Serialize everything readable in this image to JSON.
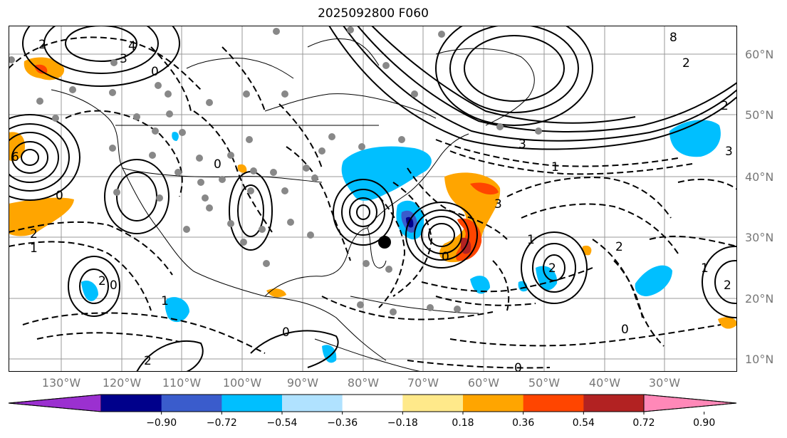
{
  "title": "2025092800 F060",
  "lat_labels": [
    "60°N",
    "50°N",
    "40°N",
    "30°N",
    "20°N",
    "10°N"
  ],
  "lon_labels": [
    "130°W",
    "120°W",
    "110°W",
    "100°W",
    "90°W",
    "80°W",
    "70°W",
    "60°W",
    "50°W",
    "40°W",
    "30°W"
  ],
  "contour_labels": [
    "2",
    "4",
    "3",
    "0",
    "6",
    "8",
    "2",
    "1",
    "2",
    "3",
    "0",
    "2",
    "1",
    "0",
    "2",
    "3",
    "0",
    "2",
    "1",
    "2",
    "0",
    "1",
    "0",
    "2",
    "3",
    "1",
    "0",
    "2",
    "0"
  ],
  "colorbar": {
    "ticks": [
      "−0.90",
      "−0.72",
      "−0.54",
      "−0.36",
      "−0.18",
      "0.18",
      "0.36",
      "0.54",
      "0.72",
      "0.90"
    ],
    "colors": [
      "#9b30d0",
      "#00008b",
      "#3a5ccc",
      "#00bfff",
      "#b0e2ff",
      "#ffffff",
      "#ffe98a",
      "#ffa500",
      "#ff4500",
      "#b22222",
      "#ff88b8"
    ]
  },
  "fill_colors": {
    "light_blue": "#00bfff",
    "mid_blue": "#3a5ccc",
    "dark_blue": "#00008b",
    "orange": "#ffa500",
    "red_orange": "#ff4500",
    "dark_red": "#b22222"
  }
}
